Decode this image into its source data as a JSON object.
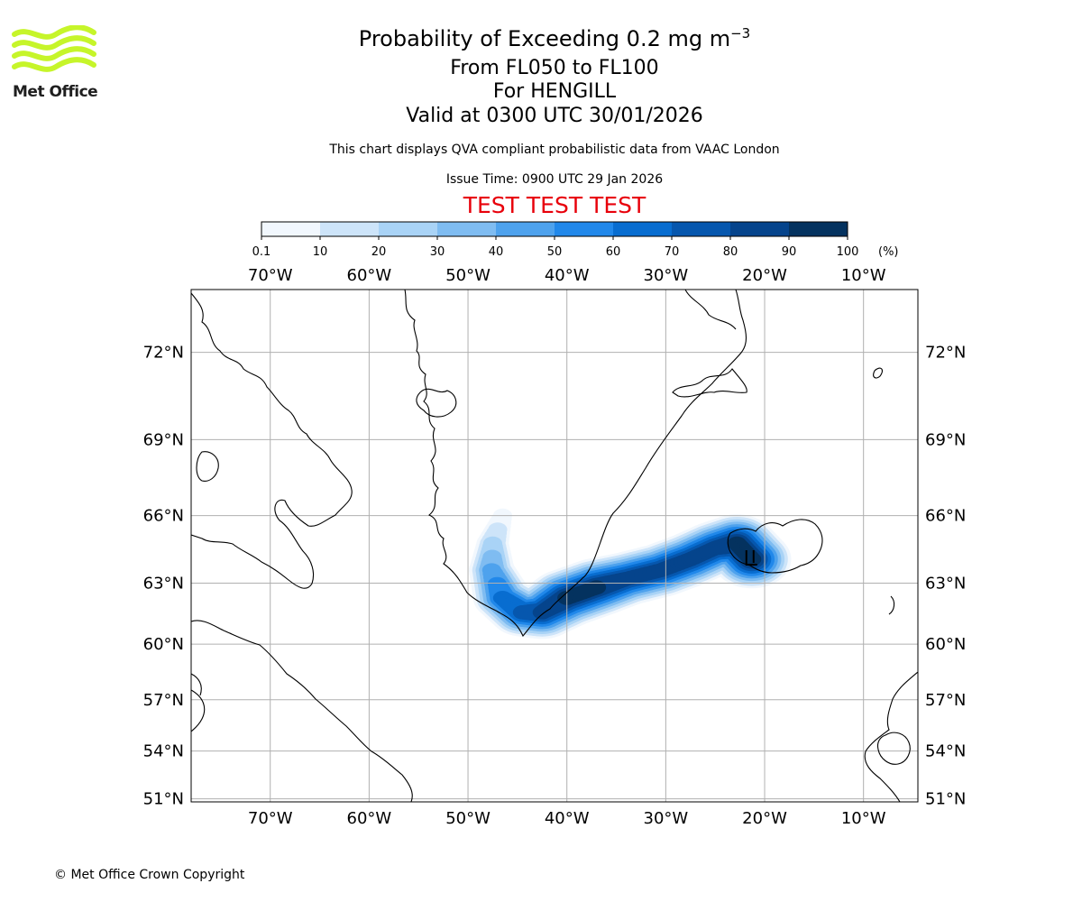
{
  "logo": {
    "text": "Met Office",
    "accent": "#c6f52a"
  },
  "header": {
    "title_main": "Probability of Exceeding 0.2 mg m",
    "title_sup": "−3",
    "levels": "From FL050 to FL100",
    "volcano": "For HENGILL",
    "valid": "Valid at 0300 UTC 30/01/2026",
    "description": "This chart displays QVA compliant probabilistic data from VAAC London",
    "issue_time": "Issue Time: 0900 UTC 29 Jan 2026",
    "test_banner": "TEST TEST TEST",
    "test_color": "#e8000b"
  },
  "colorbar": {
    "ticks": [
      "0.1",
      "10",
      "20",
      "30",
      "40",
      "50",
      "60",
      "70",
      "80",
      "90",
      "100"
    ],
    "unit": "(%)",
    "colors": [
      "#f1f7fd",
      "#cde4f9",
      "#a9d3f6",
      "#7fbcf1",
      "#4ea2ed",
      "#2188ea",
      "#086dd0",
      "#0657ae",
      "#05448c",
      "#04325f"
    ]
  },
  "chart_data": {
    "type": "heatmap",
    "title": "Probability of Exceeding 0.2 mg m−3",
    "lon_range": [
      -78,
      -4.5
    ],
    "lat_range": [
      50.8,
      73.9
    ],
    "lon_ticks": [
      "70°W",
      "60°W",
      "50°W",
      "40°W",
      "30°W",
      "20°W",
      "10°W"
    ],
    "lat_ticks": [
      "72°N",
      "69°N",
      "66°N",
      "63°N",
      "60°N",
      "57°N",
      "54°N",
      "51°N"
    ],
    "lon_values": [
      -70,
      -60,
      -50,
      -40,
      -30,
      -20,
      -10
    ],
    "lat_values": [
      72,
      69,
      66,
      63,
      60,
      57,
      54,
      51
    ],
    "plume_axis": [
      {
        "lon": -46.5,
        "lat": 66.0,
        "level": 1
      },
      {
        "lon": -47.5,
        "lat": 64.8,
        "level": 3
      },
      {
        "lon": -47.6,
        "lat": 63.6,
        "level": 5
      },
      {
        "lon": -46.5,
        "lat": 62.3,
        "level": 7
      },
      {
        "lon": -44.5,
        "lat": 61.6,
        "level": 8
      },
      {
        "lon": -42.5,
        "lat": 61.6,
        "level": 9
      },
      {
        "lon": -40.0,
        "lat": 62.3,
        "level": 10
      },
      {
        "lon": -37.0,
        "lat": 62.8,
        "level": 10
      },
      {
        "lon": -34.0,
        "lat": 63.2,
        "level": 9
      },
      {
        "lon": -30.5,
        "lat": 63.6,
        "level": 9
      },
      {
        "lon": -27.5,
        "lat": 64.1,
        "level": 9
      },
      {
        "lon": -25.0,
        "lat": 64.6,
        "level": 9
      },
      {
        "lon": -22.8,
        "lat": 64.8,
        "level": 10
      },
      {
        "lon": -21.3,
        "lat": 64.1,
        "level": 10
      }
    ],
    "source_location": {
      "name": "HENGILL",
      "lon": -21.3,
      "lat": 64.1
    }
  },
  "footer": {
    "copyright": "© Met Office Crown Copyright"
  }
}
